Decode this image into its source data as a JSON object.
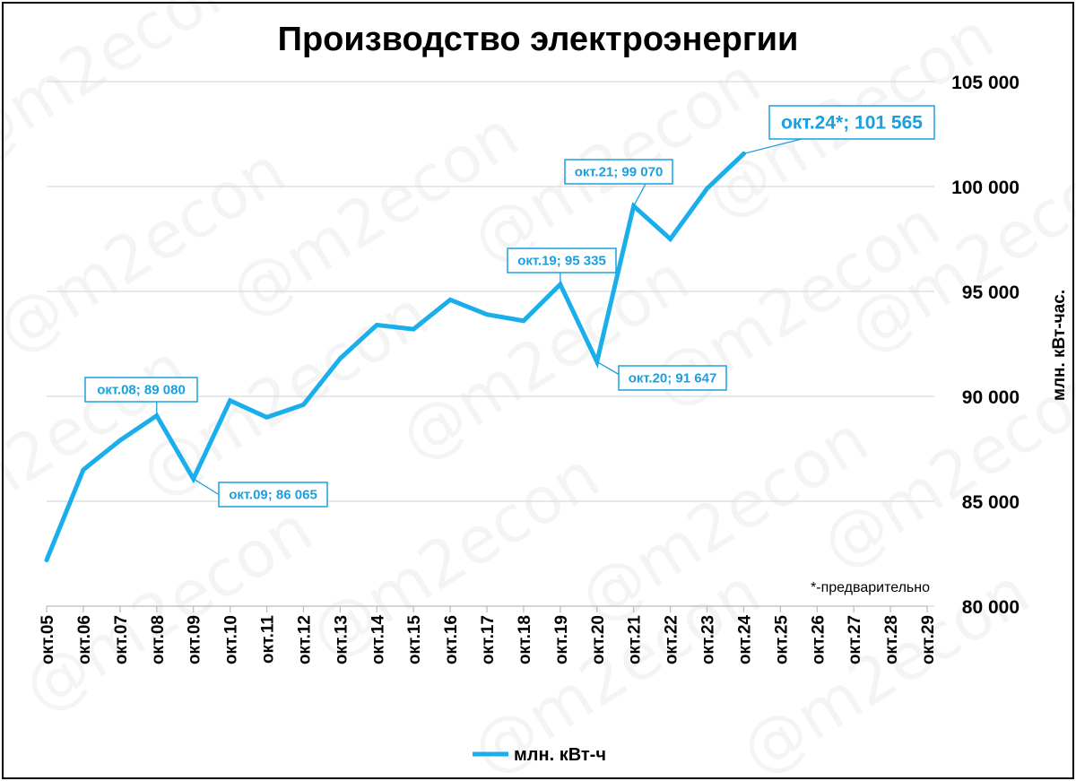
{
  "chart_data": {
    "type": "line",
    "title": "Производство электроэнергии",
    "ylabel": "млн. кВт-час.",
    "legend": "млн. кВт-ч",
    "legend_position": "bottom",
    "note": "*-предварительно",
    "watermark": "@m2econ",
    "ylim": [
      80000,
      105000
    ],
    "yticks": [
      80000,
      85000,
      90000,
      95000,
      100000,
      105000
    ],
    "ytick_labels": [
      "80 000",
      "85 000",
      "90 000",
      "95 000",
      "100 000",
      "105 000"
    ],
    "grid": true,
    "categories": [
      "окт.05",
      "окт.06",
      "окт.07",
      "окт.08",
      "окт.09",
      "окт.10",
      "окт.11",
      "окт.12",
      "окт.13",
      "окт.14",
      "окт.15",
      "окт.16",
      "окт.17",
      "окт.18",
      "окт.19",
      "окт.20",
      "окт.21",
      "окт.22",
      "окт.23",
      "окт.24",
      "окт.25",
      "окт.26",
      "окт.27",
      "окт.28",
      "окт.29"
    ],
    "series": [
      {
        "name": "млн. кВт-ч",
        "color": "#1aaeea",
        "values": [
          82200,
          86500,
          87900,
          89080,
          86065,
          89800,
          89000,
          89600,
          91800,
          93400,
          93200,
          94600,
          93900,
          93600,
          95335,
          91647,
          99070,
          97500,
          99900,
          101565,
          null,
          null,
          null,
          null,
          null
        ]
      }
    ],
    "annotations": [
      {
        "index": 3,
        "text": "окт.08; 89 080"
      },
      {
        "index": 4,
        "text": "окт.09; 86 065"
      },
      {
        "index": 14,
        "text": "окт.19; 95 335"
      },
      {
        "index": 15,
        "text": "окт.20; 91 647"
      },
      {
        "index": 16,
        "text": "окт.21; 99 070"
      },
      {
        "index": 19,
        "text": "окт.24*; 101 565"
      }
    ]
  }
}
